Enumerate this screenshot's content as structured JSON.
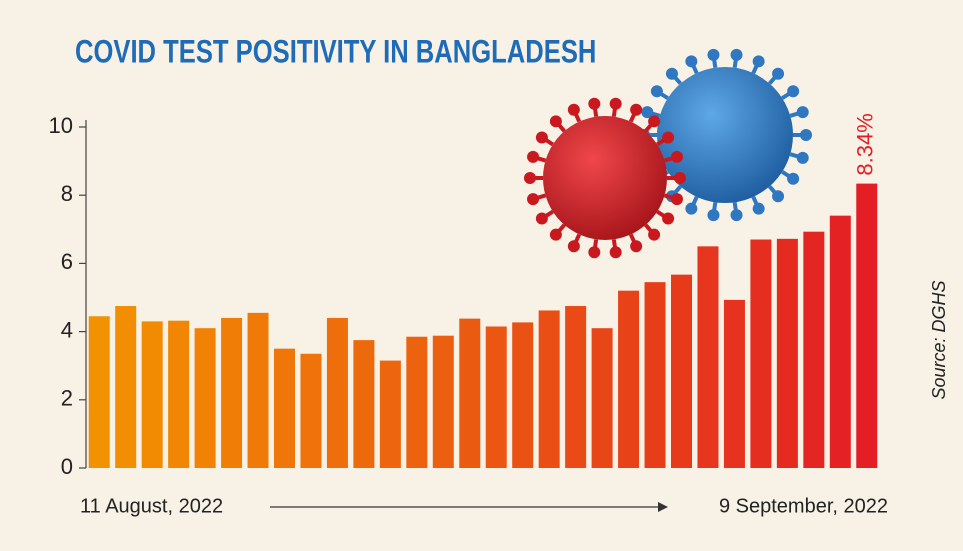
{
  "chart_data": {
    "type": "bar",
    "title": "COVID TEST POSITIVITY IN BANGLADESH",
    "source": "Source: DGHS",
    "categories": [
      "11 August, 2022",
      null,
      null,
      null,
      null,
      null,
      null,
      null,
      null,
      null,
      null,
      null,
      null,
      null,
      null,
      null,
      null,
      null,
      null,
      null,
      null,
      null,
      null,
      null,
      null,
      null,
      null,
      null,
      null,
      "9 September, 2022"
    ],
    "values": [
      4.45,
      4.75,
      4.3,
      4.32,
      4.1,
      4.4,
      4.55,
      3.5,
      3.35,
      4.4,
      3.75,
      3.15,
      3.85,
      3.88,
      4.38,
      4.15,
      4.27,
      4.62,
      4.75,
      4.1,
      5.2,
      5.45,
      5.67,
      6.5,
      4.93,
      6.7,
      6.72,
      6.93,
      7.4,
      8.34
    ],
    "value_labels": [
      null,
      null,
      null,
      null,
      null,
      null,
      null,
      null,
      null,
      null,
      null,
      null,
      null,
      null,
      null,
      null,
      null,
      null,
      null,
      null,
      null,
      null,
      null,
      null,
      null,
      null,
      null,
      null,
      null,
      "8.34%"
    ],
    "color_gradient": [
      "#f39200",
      "#e31e24"
    ],
    "ylim": [
      0,
      10
    ],
    "yticks": [
      0,
      2,
      4,
      6,
      8,
      10
    ]
  }
}
